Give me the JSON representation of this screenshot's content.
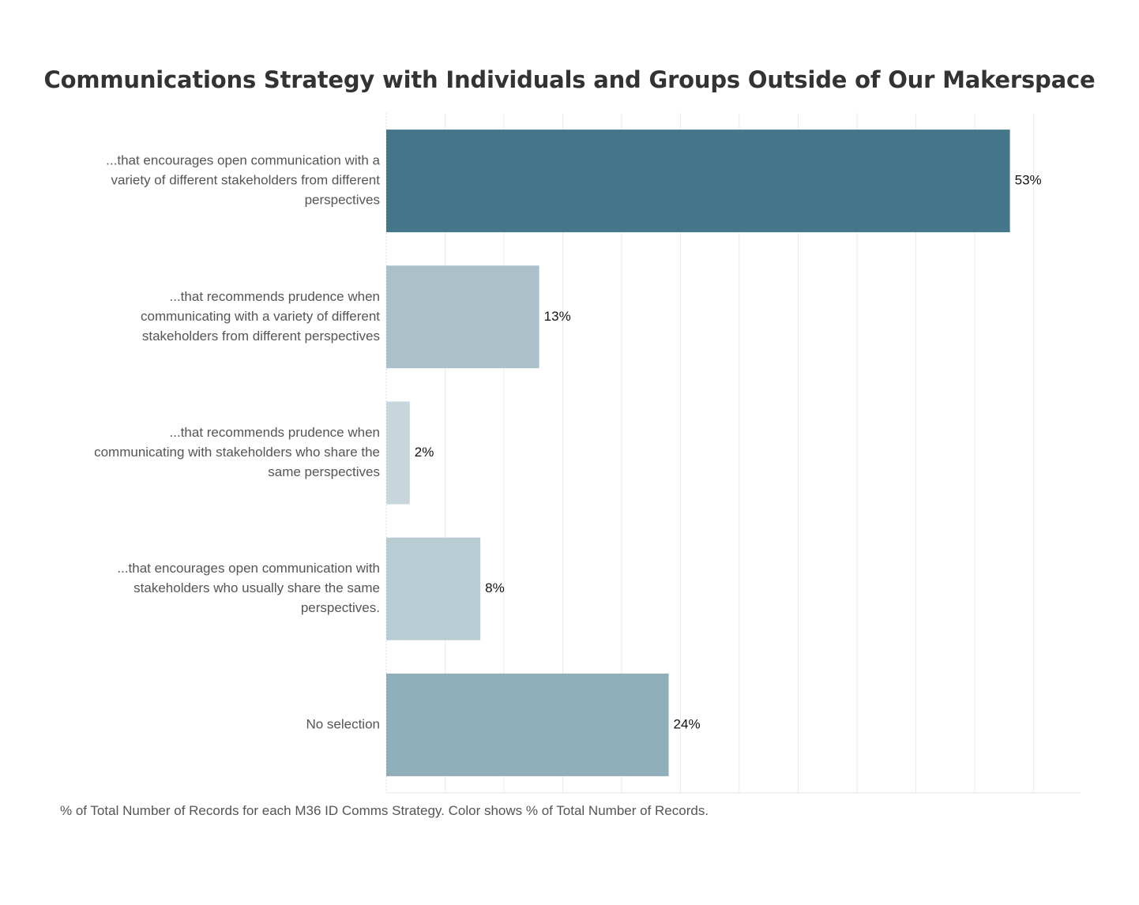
{
  "chart_data": {
    "type": "bar",
    "orientation": "horizontal",
    "title": "Communications Strategy with Individuals and Groups Outside of Our Makerspace",
    "categories": [
      [
        "...that encourages open communication with a",
        "variety of different stakeholders from different",
        "perspectives"
      ],
      [
        "...that recommends prudence when",
        "communicating with a variety of different",
        "stakeholders from different perspectives"
      ],
      [
        "...that recommends prudence when",
        "communicating with stakeholders who share the",
        "same perspectives"
      ],
      [
        "...that encourages open communication with",
        "stakeholders who usually share the same",
        "perspectives."
      ],
      [
        "No selection"
      ]
    ],
    "values": [
      53,
      13,
      2,
      8,
      24
    ],
    "value_labels": [
      "53%",
      "13%",
      "2%",
      "8%",
      "24%"
    ],
    "bar_colors": [
      "#437789",
      "#aac1ca",
      "#c6d6dc",
      "#b8ccd4",
      "#8faeb9"
    ],
    "xlim": [
      0,
      59
    ],
    "grid": true,
    "footnote": "% of Total Number of Records for each M36 ID Comms Strategy.  Color shows % of Total Number of Records."
  }
}
